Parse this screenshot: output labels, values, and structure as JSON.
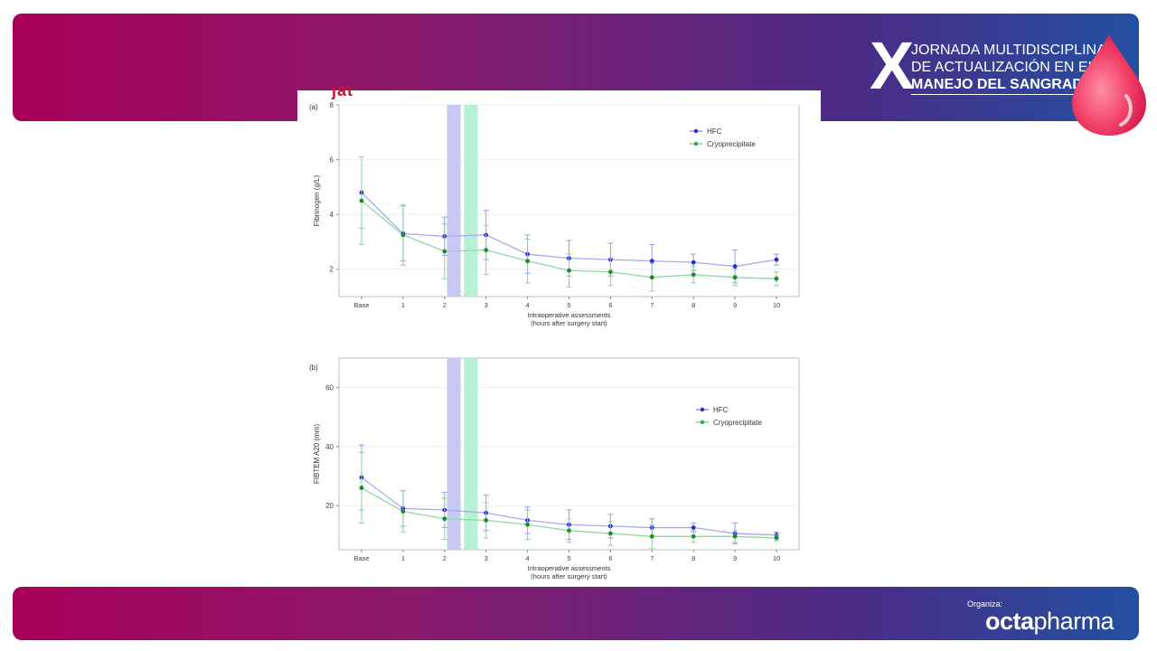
{
  "event": {
    "numeral": "X",
    "lines": [
      "JORNADA MULTIDISCIPLINAR",
      "DE ACTUALIZACIÓN EN EL",
      "MANEJO DEL SANGRADO"
    ]
  },
  "footer": {
    "organiza": "Organiza:",
    "brand_a": "octa",
    "brand_b": "pharma"
  },
  "figure": {
    "logo": "jat"
  },
  "colors": {
    "hfc": "#2a2ad6",
    "cryo": "#2ca84a",
    "band_hfc": "#c8c8f4",
    "band_cryo": "#b8f0d6"
  },
  "chart_data": [
    {
      "type": "line",
      "panel": "(a)",
      "ylabel": "Fibrinogen (g/L)",
      "xlabel": "Intraoperative assessments",
      "xlabel2": "(hours after surgery start)",
      "categories": [
        "Base",
        "1",
        "2",
        "3",
        "4",
        "5",
        "6",
        "7",
        "8",
        "9",
        "10"
      ],
      "ylim": [
        1,
        8
      ],
      "yticks": [
        2,
        4,
        6,
        8
      ],
      "grid": true,
      "legend": "top-right",
      "shaded_after": [
        "2",
        "2"
      ],
      "series": [
        {
          "name": "HFC",
          "values": [
            4.8,
            3.3,
            3.2,
            3.25,
            2.55,
            2.4,
            2.35,
            2.3,
            2.25,
            2.1,
            2.35
          ],
          "err": [
            1.3,
            1.0,
            0.7,
            0.9,
            0.7,
            0.65,
            0.6,
            0.6,
            0.3,
            0.6,
            0.2
          ]
        },
        {
          "name": "Cryoprecipitate",
          "values": [
            4.5,
            3.25,
            2.65,
            2.7,
            2.3,
            1.95,
            1.9,
            1.7,
            1.8,
            1.7,
            1.65
          ],
          "err": [
            1.6,
            1.1,
            1.0,
            0.9,
            0.8,
            0.6,
            0.5,
            0.5,
            0.3,
            0.3,
            0.25
          ]
        }
      ]
    },
    {
      "type": "line",
      "panel": "(b)",
      "ylabel": "FIBTEM A20 (mm)",
      "xlabel": "Intraoperative assessments",
      "xlabel2": "(hours after surgery start)",
      "categories": [
        "Base",
        "1",
        "2",
        "3",
        "4",
        "5",
        "6",
        "7",
        "8",
        "9",
        "10"
      ],
      "ylim": [
        5,
        70
      ],
      "yticks": [
        20,
        40,
        60
      ],
      "grid": true,
      "legend": "top-right",
      "shaded_after": [
        "2",
        "2"
      ],
      "series": [
        {
          "name": "HFC",
          "values": [
            29.5,
            19,
            18.5,
            17.5,
            15,
            13.5,
            13,
            12.5,
            12.5,
            10.5,
            10
          ],
          "err": [
            11,
            6,
            6,
            6,
            4.5,
            5,
            4,
            3,
            1.5,
            3.5,
            1
          ]
        },
        {
          "name": "Cryoprecipitate",
          "values": [
            26,
            18,
            15.5,
            15,
            13.5,
            11.5,
            10.5,
            9.5,
            9.5,
            9.5,
            9
          ],
          "err": [
            12,
            7,
            7,
            6,
            5,
            4,
            4,
            4,
            2,
            2,
            1
          ]
        }
      ]
    }
  ]
}
